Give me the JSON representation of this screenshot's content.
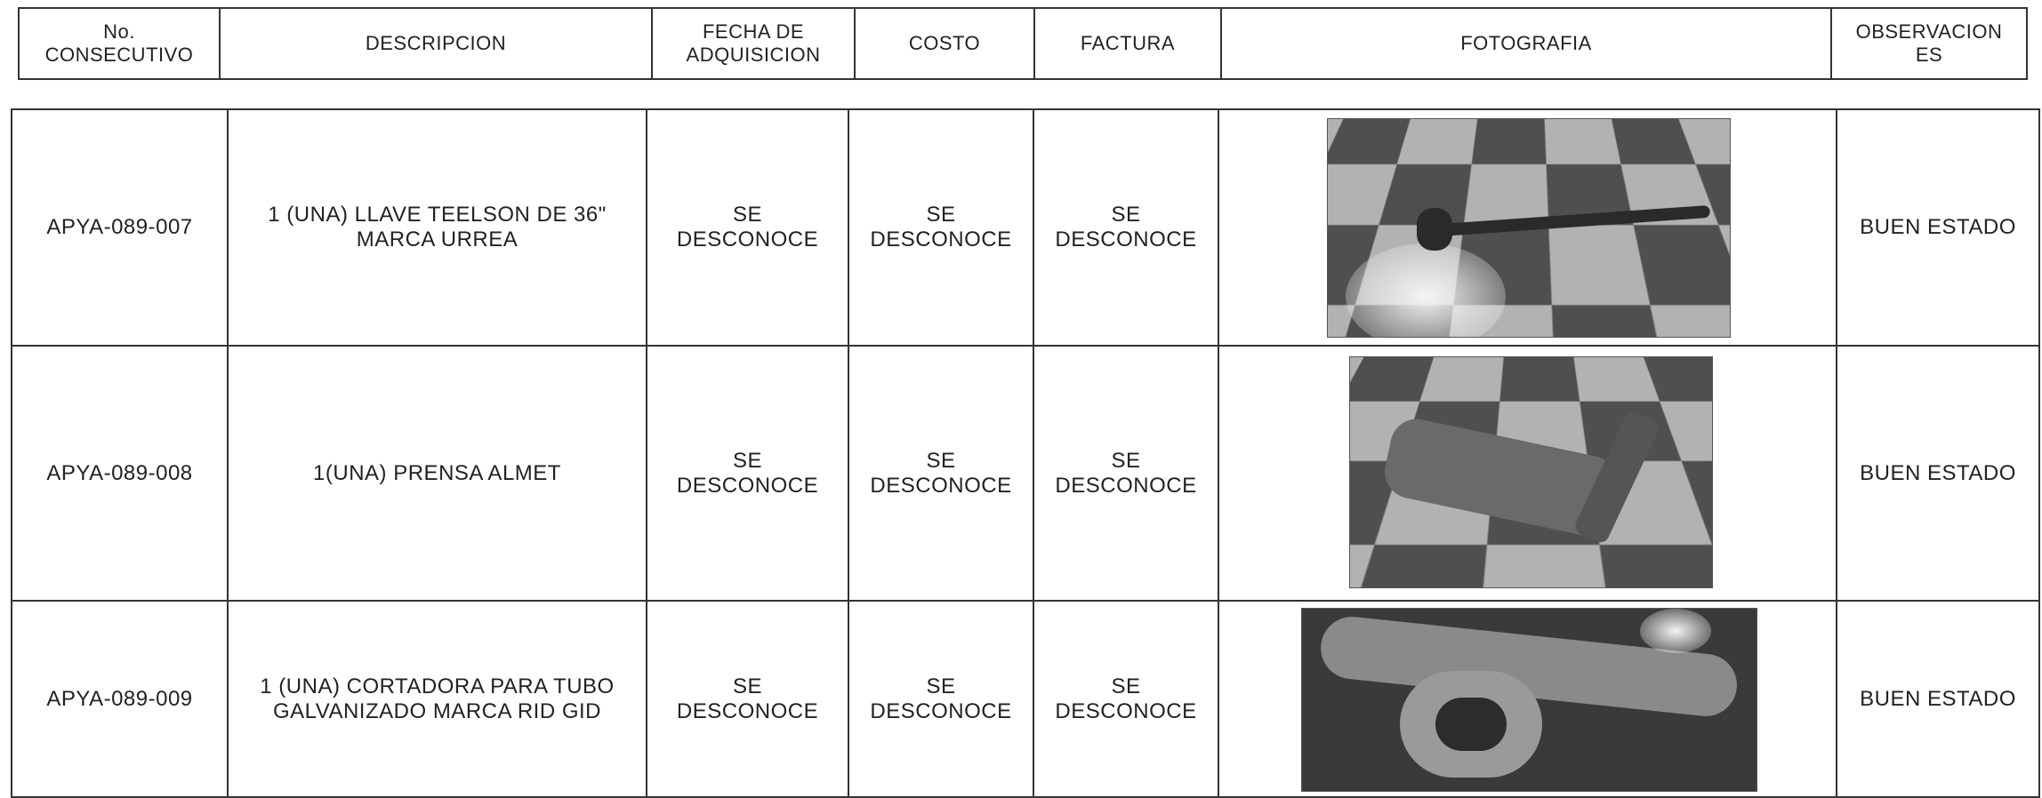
{
  "header": {
    "columns": [
      "No.\nCONSECUTIVO",
      "DESCRIPCION",
      "FECHA DE\nADQUISICION",
      "COSTO",
      "FACTURA",
      "FOTOGRAFIA",
      "OBSERVACION\nES"
    ]
  },
  "table": {
    "rows": [
      [
        "APYA-089-007",
        "1 (UNA) LLAVE  TEELSON DE 36\"\nMARCA URREA",
        "SE\nDESCONOCE",
        "SE\nDESCONOCE",
        "SE\nDESCONOCE",
        "BUEN ESTADO"
      ],
      [
        "APYA-089-008",
        "1(UNA) PRENSA  ALMET",
        "SE\nDESCONOCE",
        "SE\nDESCONOCE",
        "SE\nDESCONOCE",
        "BUEN ESTADO"
      ],
      [
        "APYA-089-009",
        "1 (UNA) CORTADORA PARA TUBO\nGALVANIZADO MARCA RID GID",
        "SE\nDESCONOCE",
        "SE\nDESCONOCE",
        "SE\nDESCONOCE",
        "BUEN ESTADO"
      ]
    ]
  }
}
